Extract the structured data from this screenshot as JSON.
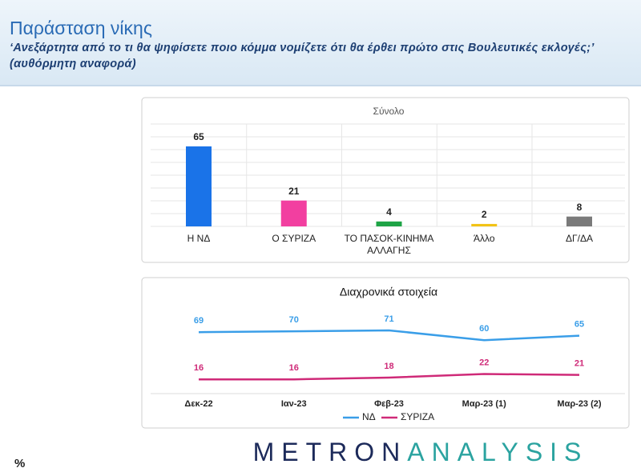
{
  "header": {
    "title": "Παράσταση νίκης",
    "subtitle": "‘Ανεξάρτητα από το τι θα ψηφίσετε ποιο κόμμα νομίζετε ότι θα έρθει πρώτο στις Βουλευτικές εκλογές;’ (αυθόρμητη αναφορά)"
  },
  "chart_data": [
    {
      "type": "bar",
      "title": "Σύνολο",
      "categories": [
        "Η ΝΔ",
        "Ο ΣΥΡΙΖΑ",
        "ΤΟ ΠΑΣΟΚ-ΚΙΝΗΜΑ ΑΛΛΑΓΗΣ",
        "Άλλο",
        "ΔΓ/ΔΑ"
      ],
      "values": [
        65,
        21,
        4,
        2,
        8
      ],
      "colors": [
        "#1a73e8",
        "#f23fa0",
        "#1ea446",
        "#f2c315",
        "#7a7a7a"
      ],
      "grid": true
    },
    {
      "type": "line",
      "title": "Διαχρονικά στοιχεία",
      "categories": [
        "Δεκ-22",
        "Ιαν-23",
        "Φεβ-23",
        "Μαρ-23 (1)",
        "Μαρ-23 (2)"
      ],
      "series": [
        {
          "name": "ΝΔ",
          "color": "#3a9ee8",
          "values": [
            69,
            70,
            71,
            60,
            65
          ]
        },
        {
          "name": "ΣΥΡΙΖΑ",
          "color": "#cf2a78",
          "values": [
            16,
            16,
            18,
            22,
            21
          ]
        }
      ],
      "legend": "bottom"
    }
  ],
  "footer": {
    "logo": [
      "METRON",
      "ANALYSIS"
    ],
    "unit": "%"
  }
}
